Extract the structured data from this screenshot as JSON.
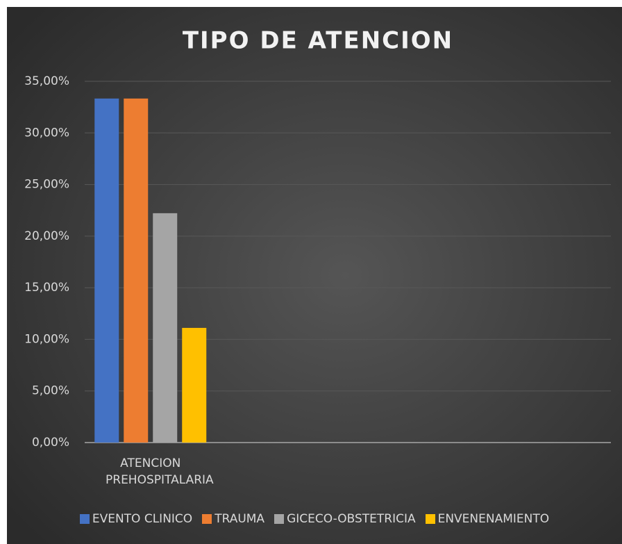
{
  "chart_data": {
    "type": "bar",
    "title": "TIPO DE ATENCION",
    "categories": [
      "ATENCION PREHOSPITALARIA",
      null,
      null,
      null
    ],
    "series": [
      {
        "name": "EVENTO CLINICO",
        "color": "#4472c4",
        "values": [
          33.33,
          null,
          null,
          null
        ]
      },
      {
        "name": "TRAUMA",
        "color": "#ed7d31",
        "values": [
          33.33,
          null,
          null,
          null
        ]
      },
      {
        "name": "GICECO-OBSTETRICIA",
        "color": "#a5a5a5",
        "values": [
          22.22,
          null,
          null,
          null
        ]
      },
      {
        "name": "ENVENENAMIENTO",
        "color": "#ffc000",
        "values": [
          11.11,
          null,
          null,
          null
        ]
      }
    ],
    "ylim": [
      0,
      35
    ],
    "yticks": [
      {
        "value": 0,
        "label": "0,00%"
      },
      {
        "value": 5,
        "label": "5,00%"
      },
      {
        "value": 10,
        "label": "10,00%"
      },
      {
        "value": 15,
        "label": "15,00%"
      },
      {
        "value": 20,
        "label": "20,00%"
      },
      {
        "value": 25,
        "label": "25,00%"
      },
      {
        "value": 30,
        "label": "30,00%"
      },
      {
        "value": 35,
        "label": "35,00%"
      }
    ],
    "grid": true,
    "legend": "bottom"
  }
}
